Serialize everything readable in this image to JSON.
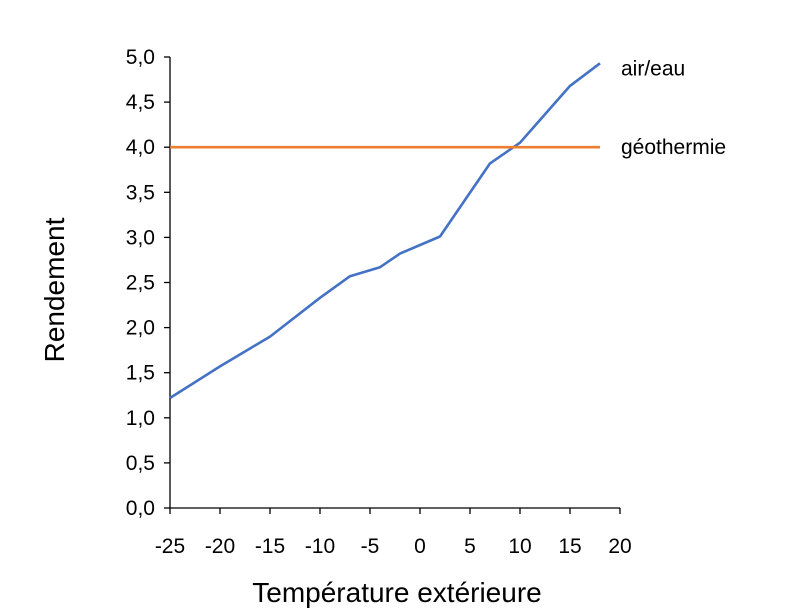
{
  "chart_data": {
    "type": "line",
    "xlabel": "Température extérieure",
    "ylabel": "Rendement",
    "xlim": [
      -25,
      20
    ],
    "ylim": [
      0,
      5
    ],
    "x_ticks": [
      "-25",
      "-20",
      "-15",
      "-10",
      "-5",
      "0",
      "5",
      "10",
      "15",
      "20"
    ],
    "y_ticks": [
      "0,0",
      "0,5",
      "1,0",
      "1,5",
      "2,0",
      "2,5",
      "3,0",
      "3,5",
      "4,0",
      "4,5",
      "5,0"
    ],
    "grid": false,
    "legend": "inline labels at right end of series",
    "series": [
      {
        "name": "air/eau",
        "color": "#4472C4",
        "x": [
          -25,
          -20,
          -15,
          -10,
          -7,
          -4,
          -2,
          2,
          7,
          10,
          15,
          18
        ],
        "y": [
          1.22,
          1.57,
          1.9,
          2.33,
          2.57,
          2.67,
          2.82,
          3.01,
          3.82,
          4.05,
          4.68,
          4.93
        ]
      },
      {
        "name": "géothermie",
        "color": "#ED7D31",
        "x": [
          -25,
          18
        ],
        "y": [
          4.0,
          4.0
        ]
      }
    ]
  }
}
